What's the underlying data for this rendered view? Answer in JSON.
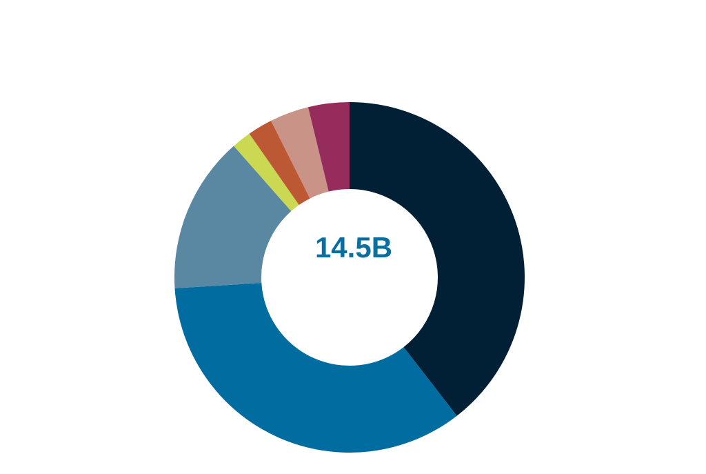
{
  "chart_data": {
    "type": "pie",
    "subtype": "donut",
    "center_label": "14.5B",
    "center_label_color": "#0b6ea1",
    "slices": [
      {
        "value": 39.5,
        "color": "#011f35"
      },
      {
        "value": 34.5,
        "color": "#006c9f"
      },
      {
        "value": 14.5,
        "color": "#5a87a2"
      },
      {
        "value": 1.8,
        "color": "#cbd952"
      },
      {
        "value": 2.3,
        "color": "#bd5834"
      },
      {
        "value": 3.6,
        "color": "#c99388"
      },
      {
        "value": 3.8,
        "color": "#952c5c"
      }
    ]
  }
}
